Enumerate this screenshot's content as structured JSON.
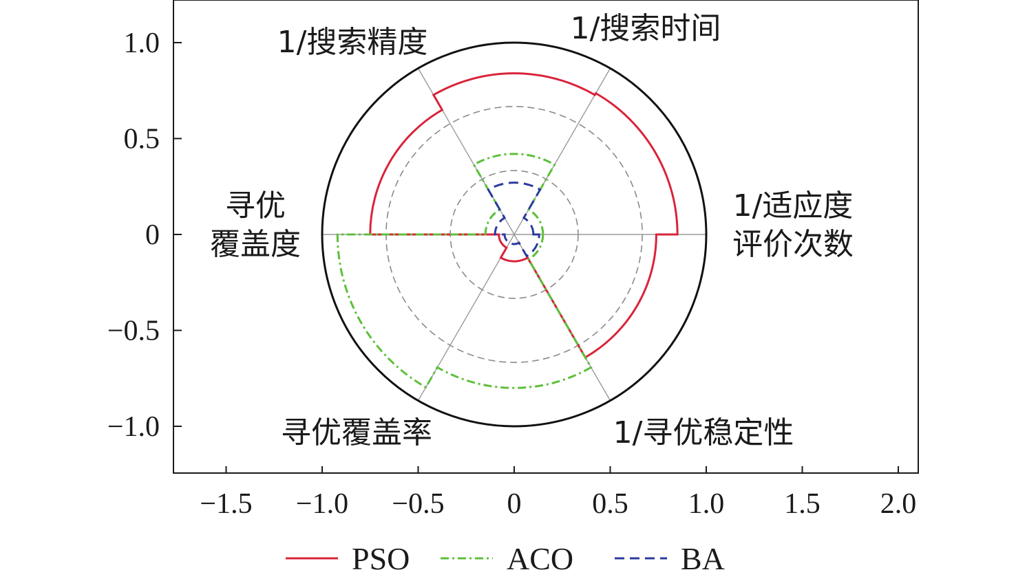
{
  "chart_data": {
    "type": "polar-sector",
    "title": "",
    "xlabel": "",
    "ylabel": "",
    "xlim": [
      -1.8,
      2.1
    ],
    "ylim": [
      -1.25,
      1.25
    ],
    "xticks": [
      -1.5,
      -1.0,
      -0.5,
      0,
      0.5,
      1.0,
      1.5,
      2.0
    ],
    "xtick_labels": [
      "−1.5",
      "−1.0",
      "−0.5",
      "0",
      "0.5",
      "1.0",
      "1.5",
      "2.0"
    ],
    "yticks": [
      1.0,
      0.5,
      0,
      -0.5,
      -1.0
    ],
    "ytick_labels": [
      "1.0",
      "0.5",
      "0",
      "−0.5",
      "−1.0"
    ],
    "grid_radii": [
      0.333,
      0.667
    ],
    "outer_radius": 1.0,
    "axes": [
      {
        "label": "1/适应度\n评价次数",
        "start_deg": 0,
        "end_deg": 60
      },
      {
        "label": "1/搜索时间",
        "start_deg": 60,
        "end_deg": 120
      },
      {
        "label": "1/搜索精度",
        "start_deg": 120,
        "end_deg": 180
      },
      {
        "label": "寻优\n覆盖度",
        "start_deg": 180,
        "end_deg": 240
      },
      {
        "label": "寻优覆盖率",
        "start_deg": 240,
        "end_deg": 300
      },
      {
        "label": "1/寻优稳定性",
        "start_deg": 300,
        "end_deg": 360
      }
    ],
    "series": [
      {
        "name": "PSO",
        "color": "#d9233a",
        "dash": "solid",
        "values": [
          0.85,
          0.84,
          0.75,
          0.08,
          0.14,
          0.74
        ]
      },
      {
        "name": "ACO",
        "color": "#5cbf3a",
        "dash": "dashdot",
        "values": [
          0.15,
          0.42,
          0.15,
          0.92,
          0.8,
          0.15
        ]
      },
      {
        "name": "BA",
        "color": "#2b3a9e",
        "dash": "dashed",
        "values": [
          0.1,
          0.27,
          0.1,
          0.05,
          0.05,
          0.13
        ]
      }
    ],
    "legend_position": "bottom-center"
  }
}
